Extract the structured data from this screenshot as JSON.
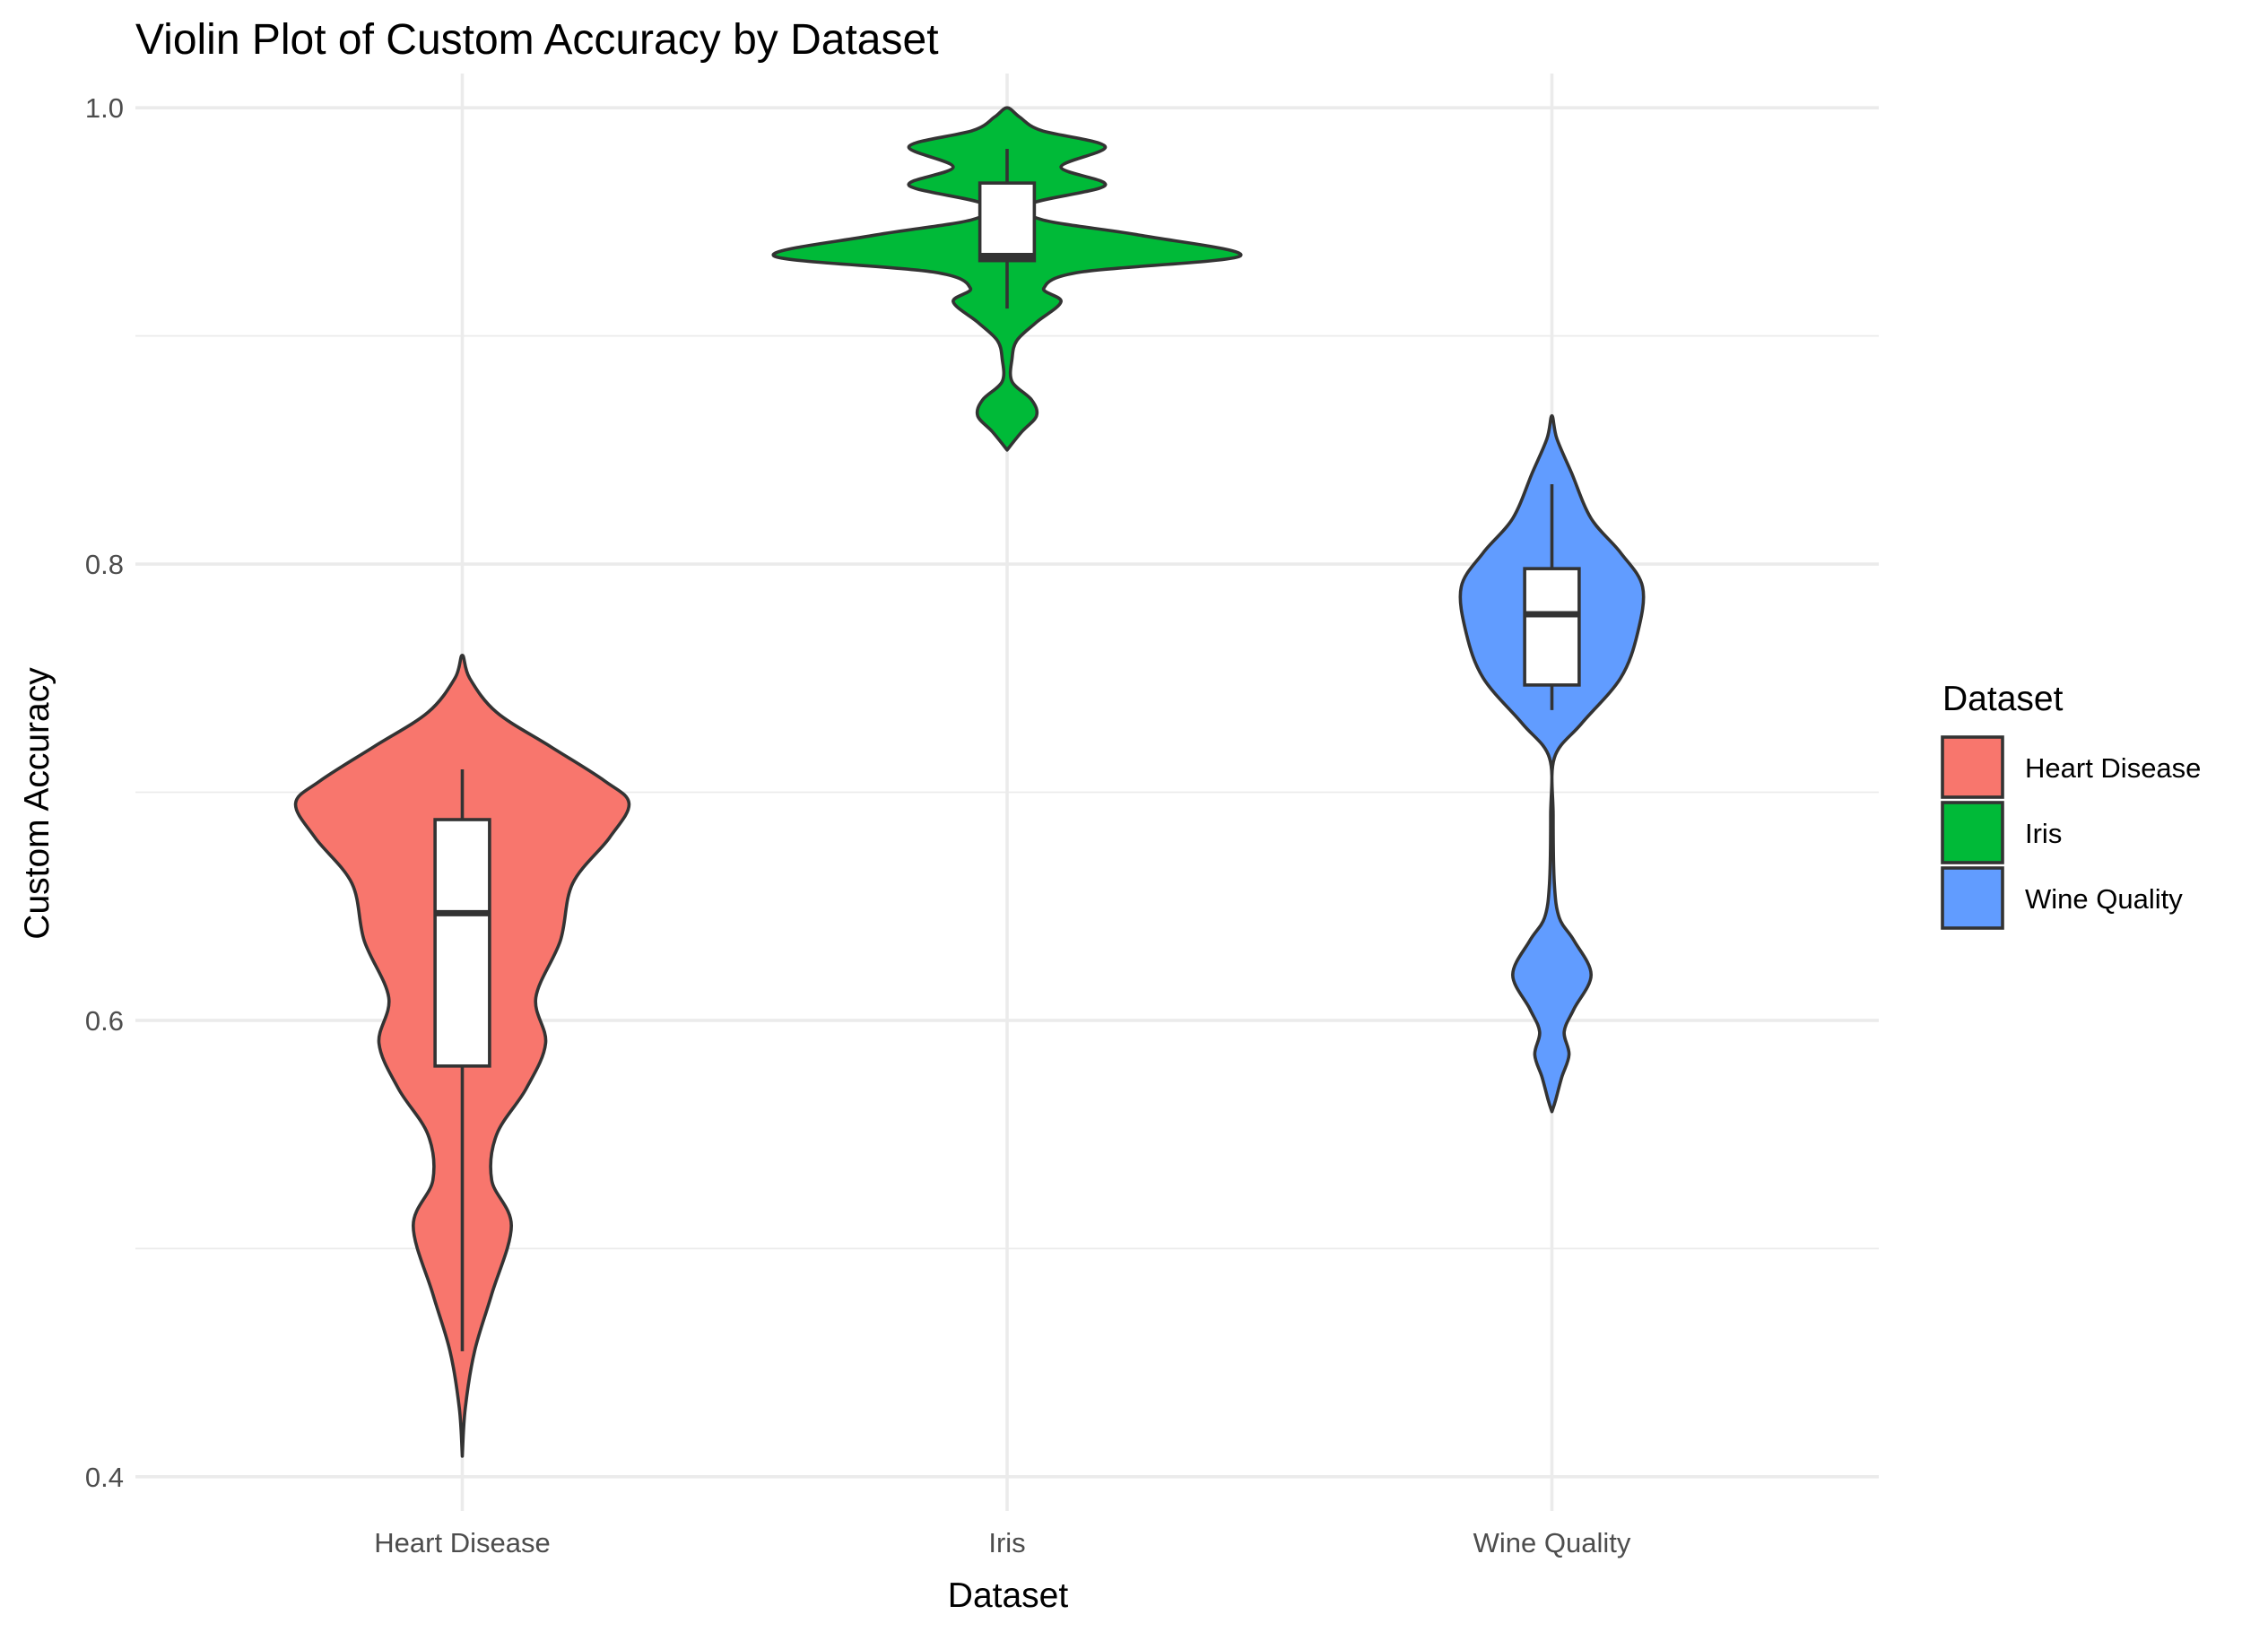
{
  "chart_data": {
    "type": "violin",
    "title": "Violin Plot of Custom Accuracy by Dataset",
    "xlabel": "Dataset",
    "ylabel": "Custom Accuracy",
    "categories": [
      "Heart Disease",
      "Iris",
      "Wine Quality"
    ],
    "ylim": [
      0.385,
      1.015
    ],
    "y_ticks": [
      0.4,
      0.6,
      0.8,
      1.0
    ],
    "y_tick_labels": [
      "0.4",
      "0.6",
      "0.8",
      "1.0"
    ],
    "y_minor_ticks": [
      0.5,
      0.7,
      0.9
    ],
    "grid": true,
    "legend": {
      "title": "Dataset",
      "position": "right",
      "entries": [
        "Heart Disease",
        "Iris",
        "Wine Quality"
      ]
    },
    "colors": {
      "Heart Disease": "#F8766D",
      "Iris": "#00BA38",
      "Wine Quality": "#619CFF"
    },
    "series": [
      {
        "name": "Heart Disease",
        "box": {
          "whisker_low": 0.455,
          "q1": 0.58,
          "median": 0.647,
          "q3": 0.688,
          "whisker_high": 0.71
        },
        "violin_profile": [
          [
            0.409,
            0.0
          ],
          [
            0.43,
            0.012
          ],
          [
            0.455,
            0.05
          ],
          [
            0.48,
            0.12
          ],
          [
            0.51,
            0.2
          ],
          [
            0.53,
            0.12
          ],
          [
            0.55,
            0.14
          ],
          [
            0.57,
            0.26
          ],
          [
            0.59,
            0.34
          ],
          [
            0.61,
            0.3
          ],
          [
            0.635,
            0.4
          ],
          [
            0.66,
            0.45
          ],
          [
            0.68,
            0.6
          ],
          [
            0.695,
            0.68
          ],
          [
            0.705,
            0.58
          ],
          [
            0.72,
            0.36
          ],
          [
            0.735,
            0.14
          ],
          [
            0.75,
            0.03
          ],
          [
            0.76,
            0.0
          ]
        ]
      },
      {
        "name": "Iris",
        "box": {
          "whisker_low": 0.912,
          "q1": 0.933,
          "median": 0.935,
          "q3": 0.967,
          "whisker_high": 0.982
        },
        "violin_profile": [
          [
            0.85,
            0.0
          ],
          [
            0.858,
            0.06
          ],
          [
            0.865,
            0.12
          ],
          [
            0.872,
            0.1
          ],
          [
            0.88,
            0.02
          ],
          [
            0.89,
            0.02
          ],
          [
            0.898,
            0.04
          ],
          [
            0.906,
            0.12
          ],
          [
            0.915,
            0.22
          ],
          [
            0.921,
            0.15
          ],
          [
            0.928,
            0.3
          ],
          [
            0.935,
            0.95
          ],
          [
            0.944,
            0.55
          ],
          [
            0.951,
            0.14
          ],
          [
            0.958,
            0.1
          ],
          [
            0.966,
            0.4
          ],
          [
            0.974,
            0.22
          ],
          [
            0.983,
            0.4
          ],
          [
            0.99,
            0.14
          ],
          [
            0.996,
            0.05
          ],
          [
            1.0,
            0.0
          ]
        ]
      },
      {
        "name": "Wine Quality",
        "box": {
          "whisker_low": 0.736,
          "q1": 0.747,
          "median": 0.778,
          "q3": 0.798,
          "whisker_high": 0.835
        },
        "violin_profile": [
          [
            0.56,
            0.0
          ],
          [
            0.565,
            0.015
          ],
          [
            0.575,
            0.04
          ],
          [
            0.585,
            0.07
          ],
          [
            0.595,
            0.05
          ],
          [
            0.605,
            0.09
          ],
          [
            0.62,
            0.16
          ],
          [
            0.635,
            0.09
          ],
          [
            0.645,
            0.03
          ],
          [
            0.66,
            0.01
          ],
          [
            0.69,
            0.005
          ],
          [
            0.715,
            0.01
          ],
          [
            0.73,
            0.12
          ],
          [
            0.75,
            0.28
          ],
          [
            0.77,
            0.35
          ],
          [
            0.79,
            0.37
          ],
          [
            0.805,
            0.28
          ],
          [
            0.82,
            0.16
          ],
          [
            0.84,
            0.08
          ],
          [
            0.855,
            0.02
          ],
          [
            0.865,
            0.0
          ]
        ]
      }
    ]
  }
}
